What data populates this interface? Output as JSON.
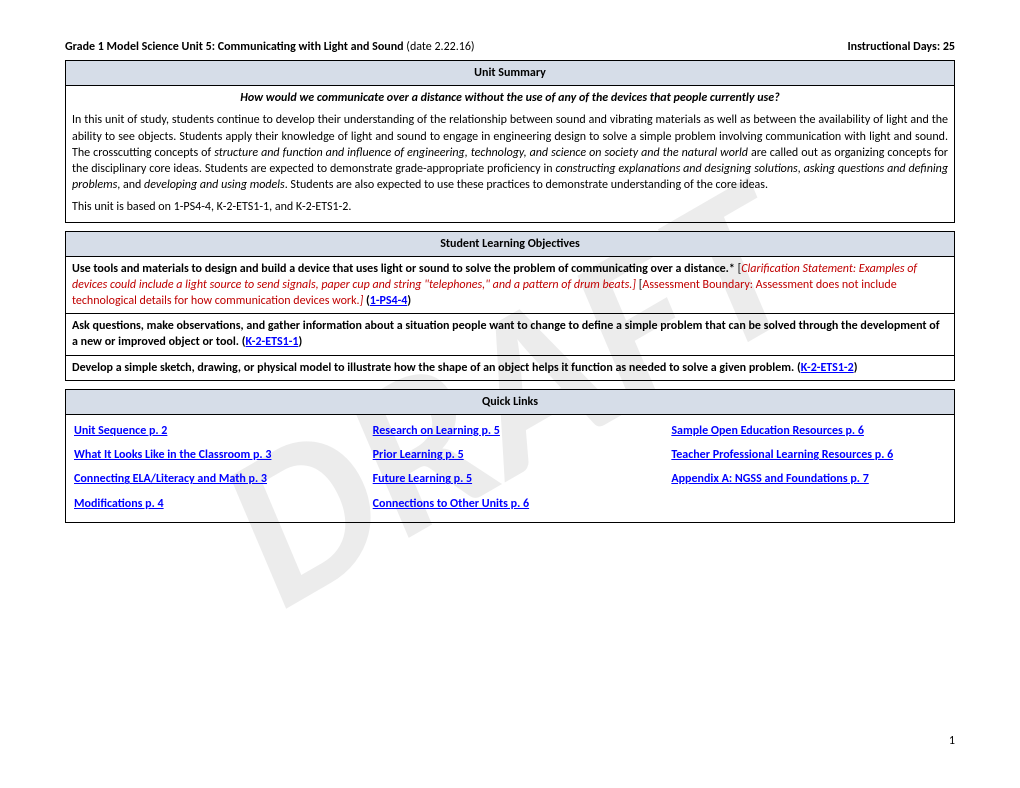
{
  "watermark": "DRAFT",
  "header": {
    "title_bold": "Grade 1 Model Science Unit 5: Communicating with Light and Sound",
    "date": " (date 2.22.16)",
    "days": "Instructional Days: 25"
  },
  "unit_summary": {
    "heading": "Unit Summary",
    "question": "How would we communicate over a distance without the use of any of the devices that people currently use?",
    "p1a": "In this unit of study, students continue to develop their understanding of the relationship between sound and vibrating materials as well as between the availability of light and the ability to see objects. Students apply their knowledge of light and sound to engage in engineering design to solve a simple problem involving communication with light and sound. The crosscutting concepts of ",
    "p1b": "structure and function and influence of engineering, technology, and science on society and the natural world",
    "p1c": " are called out as organizing concepts for the disciplinary core ideas. Students are expected to demonstrate grade-appropriate proficiency in ",
    "p1d": "constructing explanations and designing solutions",
    "p1e": ", ",
    "p1f": "asking questions and defining problems",
    "p1g": ", and ",
    "p1h": "developing and using models",
    "p1i": ". Students are also expected to use these practices to demonstrate understanding of the core ideas.",
    "p2": "This unit is based on 1-PS4-4, K-2-ETS1-1, and K-2-ETS1-2."
  },
  "slo": {
    "heading": "Student Learning Objectives",
    "obj1a": " Use tools and materials to design and build a device that uses light or sound to solve the problem of communicating over a distance.*",
    "obj1b": " [",
    "obj1c": "Clarification Statement: Examples of devices could include a light source to send signals, paper cup and string \"telephones,\" and a pattern of drum beats.]",
    "obj1d": " [",
    "obj1e": "Assessment Boundary: Assessment does not include technological details for how communication devices work.",
    "obj1f": "]",
    "obj1g": " (",
    "obj1_link": "1-PS4-4",
    "obj1h": ")",
    "obj2a": "Ask questions, make observations, and gather information about a situation people want to change to define a simple problem that can be solved through the development of a new or improved object or tool. (",
    "obj2_link": "K-2-ETS1-1",
    "obj2b": ")",
    "obj3a": "Develop a simple sketch, drawing, or physical model to illustrate how the shape of an object helps it function as needed to solve a given problem. (",
    "obj3_link": "K-2-ETS1-2",
    "obj3b": ")"
  },
  "quick_links": {
    "heading": "Quick Links",
    "col1": [
      "Unit Sequence p. 2",
      "What It Looks Like in the Classroom p. 3",
      "Connecting ELA/Literacy and Math p. 3",
      "Modifications p. 4"
    ],
    "col2": [
      "Research on Learning p. 5",
      "Prior Learning p. 5",
      "Future Learning p. 5",
      "Connections to Other Units p. 6"
    ],
    "col3": [
      "Sample Open Education Resources p. 6",
      "Teacher Professional Learning Resources p. 6",
      "Appendix A: NGSS and Foundations p. 7"
    ]
  },
  "page_number": "1"
}
